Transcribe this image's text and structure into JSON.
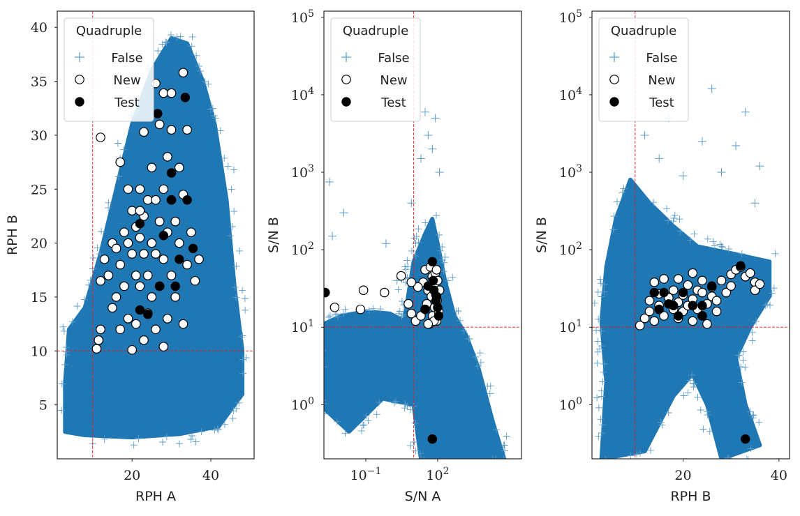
{
  "legend": {
    "title": "Quadruple",
    "entries": [
      {
        "label": "False",
        "marker": "plus",
        "color": "#5b9bc9"
      },
      {
        "label": "New",
        "marker": "open-circle",
        "color": "#000000"
      },
      {
        "label": "Test",
        "marker": "filled-circle",
        "color": "#000000"
      }
    ]
  },
  "colors": {
    "false_points": "#5b9bc9",
    "dense_region": "#1f77b4",
    "threshold_line": "#e41a1c",
    "new_face": "#ffffff",
    "marker_edge": "#000000",
    "test_face": "#000000"
  },
  "chart_data": [
    {
      "type": "scatter",
      "xlabel": "RPH A",
      "ylabel": "RPH B",
      "xscale": "linear",
      "yscale": "linear",
      "xlim": [
        1,
        51
      ],
      "ylim": [
        0,
        41.5
      ],
      "xticks": [
        20,
        40
      ],
      "xtick_labels": [
        "20",
        "40"
      ],
      "yticks": [
        5,
        10,
        15,
        20,
        25,
        30,
        35,
        40
      ],
      "ytick_labels": [
        "5",
        "10",
        "15",
        "20",
        "25",
        "30",
        "35",
        "40"
      ],
      "thresholds": {
        "x": 10,
        "y": 10
      },
      "legend_position": "top-left",
      "false_density_outline": [
        [
          3,
          2.5
        ],
        [
          8,
          2.2
        ],
        [
          20,
          2
        ],
        [
          32,
          2.3
        ],
        [
          42,
          3
        ],
        [
          48,
          6
        ],
        [
          48,
          10
        ],
        [
          46,
          16
        ],
        [
          44,
          24
        ],
        [
          41,
          31
        ],
        [
          38,
          35
        ],
        [
          34,
          38.5
        ],
        [
          30,
          39
        ],
        [
          25,
          36
        ],
        [
          20,
          31
        ],
        [
          16,
          25
        ],
        [
          12,
          19
        ],
        [
          8,
          14
        ],
        [
          4,
          12
        ],
        [
          3,
          7
        ]
      ],
      "new": [
        [
          11,
          10.2
        ],
        [
          11.5,
          11
        ],
        [
          12,
          12
        ],
        [
          12,
          16.5
        ],
        [
          13,
          18.5
        ],
        [
          14,
          17
        ],
        [
          15,
          20
        ],
        [
          15,
          14
        ],
        [
          16,
          19.5
        ],
        [
          16,
          15
        ],
        [
          17,
          12
        ],
        [
          17,
          18
        ],
        [
          18,
          21
        ],
        [
          18,
          16
        ],
        [
          19,
          13
        ],
        [
          19,
          20
        ],
        [
          20,
          10.1
        ],
        [
          20,
          19
        ],
        [
          20,
          23
        ],
        [
          21,
          17
        ],
        [
          21,
          12.5
        ],
        [
          22,
          20.5
        ],
        [
          22,
          25
        ],
        [
          22,
          16
        ],
        [
          23,
          11
        ],
        [
          23,
          19
        ],
        [
          23,
          22.5
        ],
        [
          24,
          13.5
        ],
        [
          24,
          17
        ],
        [
          24,
          24
        ],
        [
          25,
          15
        ],
        [
          25,
          20
        ],
        [
          25,
          27
        ],
        [
          26,
          12
        ],
        [
          26,
          19
        ],
        [
          26,
          24
        ],
        [
          27,
          22
        ],
        [
          27,
          16
        ],
        [
          27,
          31
        ],
        [
          28,
          10.4
        ],
        [
          28,
          25
        ],
        [
          28,
          18.5
        ],
        [
          29,
          21
        ],
        [
          29,
          13
        ],
        [
          29,
          28
        ],
        [
          30,
          24
        ],
        [
          30,
          17
        ],
        [
          30,
          30.5
        ],
        [
          31,
          22
        ],
        [
          31,
          15
        ],
        [
          32,
          27
        ],
        [
          32,
          20
        ],
        [
          33,
          12.5
        ],
        [
          33,
          24.5
        ],
        [
          34,
          18
        ],
        [
          34,
          30.5
        ],
        [
          35,
          21
        ],
        [
          36,
          16.5
        ],
        [
          37,
          18.5
        ],
        [
          12,
          29.8
        ],
        [
          17,
          27.5
        ],
        [
          26,
          34.8
        ],
        [
          28,
          33.9
        ],
        [
          30,
          33.9
        ],
        [
          33,
          35.8
        ],
        [
          23,
          30.3
        ],
        [
          22,
          23
        ],
        [
          19,
          25
        ],
        [
          21,
          21.5
        ]
      ],
      "test": [
        [
          26.5,
          32
        ],
        [
          33.5,
          33.5
        ],
        [
          30,
          26.5
        ],
        [
          34,
          24
        ],
        [
          22,
          21.8
        ],
        [
          28,
          20.7
        ],
        [
          35.5,
          19.5
        ],
        [
          32,
          18.5
        ],
        [
          31,
          16
        ],
        [
          27,
          16
        ],
        [
          22,
          13.8
        ],
        [
          24,
          13.4
        ],
        [
          30,
          24
        ]
      ]
    },
    {
      "type": "scatter",
      "xlabel": "S/N A",
      "ylabel": "S/N B",
      "xscale": "log",
      "yscale": "log",
      "xlim": [
        0.00178,
        316228
      ],
      "ylim": [
        0.2,
        120000
      ],
      "xticks": [
        0.1,
        100
      ],
      "xtick_labels": [
        "10^−1",
        "10^2"
      ],
      "yticks": [
        1,
        10,
        100,
        1000,
        10000,
        100000
      ],
      "ytick_labels": [
        "10^0",
        "10^1",
        "10^2",
        "10^3",
        "10^4",
        "10^5"
      ],
      "thresholds": {
        "x": 10,
        "y": 10
      },
      "legend_position": "top-left",
      "false_density_outline": [
        [
          0.00178,
          11
        ],
        [
          0.01,
          14
        ],
        [
          0.1,
          16
        ],
        [
          1,
          15
        ],
        [
          4,
          12
        ],
        [
          10,
          70
        ],
        [
          30,
          160
        ],
        [
          60,
          250
        ],
        [
          100,
          120
        ],
        [
          200,
          40
        ],
        [
          500,
          14
        ],
        [
          1500,
          8
        ],
        [
          5000,
          3
        ],
        [
          20000,
          0.6
        ],
        [
          60000,
          0.2
        ],
        [
          20,
          0.2
        ],
        [
          10,
          1
        ],
        [
          0.5,
          1.2
        ],
        [
          0.02,
          0.45
        ],
        [
          0.00178,
          0.9
        ]
      ],
      "false_outliers": [
        [
          0.003,
          750
        ],
        [
          0.012,
          300
        ],
        [
          0.004,
          150
        ],
        [
          30,
          6000
        ],
        [
          80,
          5000
        ],
        [
          40,
          3000
        ],
        [
          20,
          1500
        ],
        [
          60,
          2000
        ],
        [
          120,
          1000
        ],
        [
          8,
          400
        ],
        [
          200,
          80
        ],
        [
          0.7,
          120
        ],
        [
          2,
          40
        ]
      ],
      "new": [
        [
          0.002,
          28
        ],
        [
          0.005,
          18
        ],
        [
          0.08,
          30
        ],
        [
          0.6,
          28
        ],
        [
          3,
          46
        ],
        [
          6,
          20
        ],
        [
          8,
          15
        ],
        [
          12,
          12
        ],
        [
          20,
          14
        ],
        [
          25,
          38
        ],
        [
          30,
          55
        ],
        [
          35,
          20
        ],
        [
          40,
          30
        ],
        [
          45,
          11
        ],
        [
          50,
          60
        ],
        [
          55,
          25
        ],
        [
          60,
          45
        ],
        [
          62,
          14
        ],
        [
          70,
          35
        ],
        [
          75,
          18
        ],
        [
          80,
          50
        ],
        [
          85,
          26
        ],
        [
          90,
          12
        ],
        [
          95,
          22
        ],
        [
          100,
          40
        ],
        [
          110,
          16
        ],
        [
          120,
          30
        ],
        [
          70,
          12
        ],
        [
          40,
          11
        ],
        [
          30,
          17
        ],
        [
          15,
          33
        ],
        [
          8,
          38
        ],
        [
          0.06,
          17
        ],
        [
          90,
          55
        ]
      ],
      "test": [
        [
          0.002,
          28
        ],
        [
          60,
          70
        ],
        [
          65,
          40
        ],
        [
          70,
          30
        ],
        [
          85,
          22
        ],
        [
          100,
          18
        ],
        [
          110,
          14
        ],
        [
          40,
          34
        ],
        [
          30,
          17
        ],
        [
          90,
          25
        ],
        [
          60,
          0.36
        ]
      ]
    },
    {
      "type": "scatter",
      "xlabel": "RPH B",
      "ylabel": "S/N B",
      "xscale": "linear",
      "yscale": "log",
      "xlim": [
        1,
        42.2
      ],
      "ylim": [
        0.2,
        120000
      ],
      "xticks": [
        20,
        40
      ],
      "xtick_labels": [
        "20",
        "40"
      ],
      "yticks": [
        1,
        10,
        100,
        1000,
        10000,
        100000
      ],
      "ytick_labels": [
        "10^0",
        "10^1",
        "10^2",
        "10^3",
        "10^4",
        "10^5"
      ],
      "thresholds": {
        "x": 10,
        "y": 10
      },
      "legend_position": "top-left",
      "false_density_outline": [
        [
          3,
          0.2
        ],
        [
          4,
          2
        ],
        [
          3,
          12
        ],
        [
          4,
          60
        ],
        [
          6,
          250
        ],
        [
          9,
          800
        ],
        [
          13,
          400
        ],
        [
          18,
          200
        ],
        [
          23,
          110
        ],
        [
          30,
          90
        ],
        [
          38,
          70
        ],
        [
          38,
          25
        ],
        [
          34,
          10
        ],
        [
          31,
          4
        ],
        [
          33,
          1
        ],
        [
          36,
          0.3
        ],
        [
          28,
          0.2
        ],
        [
          25,
          1
        ],
        [
          22,
          2.5
        ],
        [
          18,
          1.3
        ],
        [
          12,
          0.25
        ]
      ],
      "false_outliers": [
        [
          26,
          12000
        ],
        [
          33,
          6000
        ],
        [
          17,
          5000
        ],
        [
          24,
          2500
        ],
        [
          31,
          2200
        ],
        [
          15,
          1500
        ],
        [
          20,
          900
        ],
        [
          35,
          400
        ],
        [
          12,
          3000
        ],
        [
          36,
          1200
        ],
        [
          28,
          1000
        ]
      ],
      "new": [
        [
          11,
          10.5
        ],
        [
          12,
          13
        ],
        [
          13,
          16
        ],
        [
          13,
          22
        ],
        [
          14,
          12
        ],
        [
          15,
          27
        ],
        [
          15,
          19
        ],
        [
          16,
          14
        ],
        [
          17,
          24
        ],
        [
          18,
          17
        ],
        [
          18,
          30
        ],
        [
          19,
          13
        ],
        [
          19,
          21
        ],
        [
          20,
          26
        ],
        [
          20,
          16
        ],
        [
          21,
          35
        ],
        [
          21,
          19
        ],
        [
          22,
          12
        ],
        [
          22,
          23
        ],
        [
          23,
          17
        ],
        [
          23,
          30
        ],
        [
          24,
          14
        ],
        [
          24,
          40
        ],
        [
          25,
          20
        ],
        [
          25,
          11
        ],
        [
          26,
          25
        ],
        [
          26,
          33
        ],
        [
          27,
          16
        ],
        [
          27,
          22
        ],
        [
          28,
          40
        ],
        [
          29,
          28
        ],
        [
          30,
          34
        ],
        [
          30,
          48
        ],
        [
          31,
          55
        ],
        [
          32,
          60
        ],
        [
          33,
          45
        ],
        [
          34,
          50
        ],
        [
          35,
          38
        ],
        [
          35,
          30
        ],
        [
          36,
          36
        ],
        [
          14,
          38
        ],
        [
          16,
          42
        ],
        [
          22,
          50
        ],
        [
          19,
          42
        ],
        [
          24,
          28
        ]
      ],
      "test": [
        [
          14,
          28
        ],
        [
          16,
          28
        ],
        [
          15,
          17
        ],
        [
          17,
          20
        ],
        [
          19,
          14
        ],
        [
          20,
          28
        ],
        [
          22,
          19
        ],
        [
          24,
          19
        ],
        [
          24,
          14
        ],
        [
          26,
          34
        ],
        [
          32,
          62
        ],
        [
          33,
          0.36
        ],
        [
          18,
          19
        ]
      ]
    }
  ]
}
